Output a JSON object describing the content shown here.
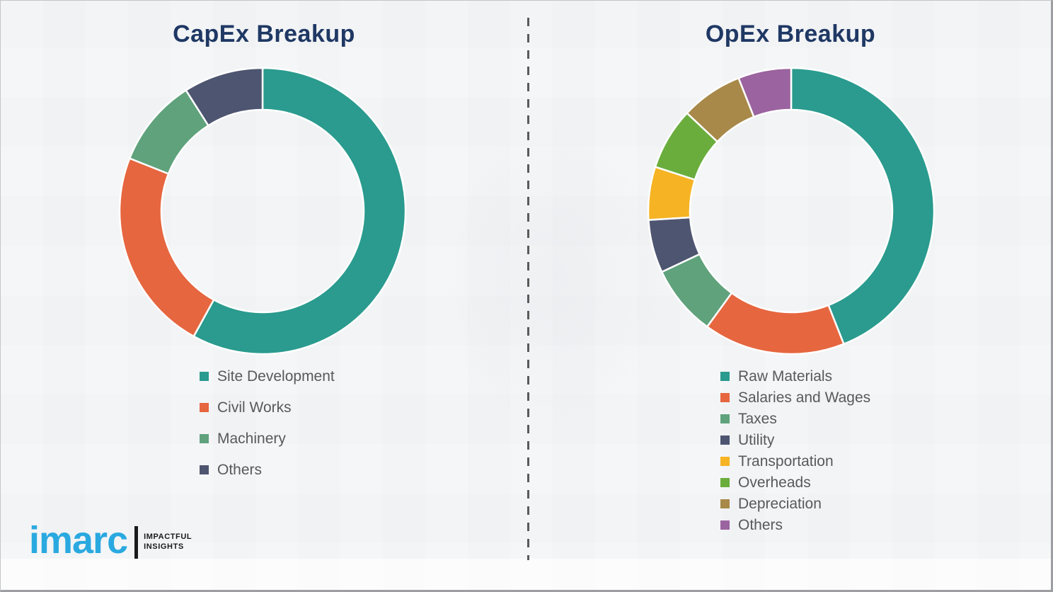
{
  "chart_data": [
    {
      "type": "pie",
      "donut": true,
      "title": "CapEx Breakup",
      "labels": [
        "Site Development",
        "Civil Works",
        "Machinery",
        "Others"
      ],
      "values": [
        58,
        23,
        10,
        9
      ],
      "colors": [
        "#2a9b8e",
        "#e6663f",
        "#5fa27c",
        "#4e5570"
      ],
      "start_angle": "top",
      "direction": "clockwise",
      "legend_position": "below-left",
      "data_labels_shown": false
    },
    {
      "type": "pie",
      "donut": true,
      "title": "OpEx Breakup",
      "labels": [
        "Raw Materials",
        "Salaries and Wages",
        "Taxes",
        "Utility",
        "Transportation",
        "Overheads",
        "Depreciation",
        "Others"
      ],
      "values": [
        44,
        16,
        8,
        6,
        6,
        7,
        7,
        6
      ],
      "colors": [
        "#2a9b8e",
        "#e6663f",
        "#5fa27c",
        "#4e5570",
        "#f6b324",
        "#6aad3d",
        "#a8894a",
        "#9b639f"
      ],
      "start_angle": "top",
      "direction": "clockwise",
      "legend_position": "below-left",
      "data_labels_shown": false
    }
  ],
  "divider": {
    "style": "dashed-vertical",
    "color": "#5a5a5a"
  },
  "logo": {
    "brand": "imarc",
    "brand_color": "#2aa9e0",
    "tagline_line1": "IMPACTFUL",
    "tagline_line2": "INSIGHTS"
  },
  "title_color": "#1f3864"
}
